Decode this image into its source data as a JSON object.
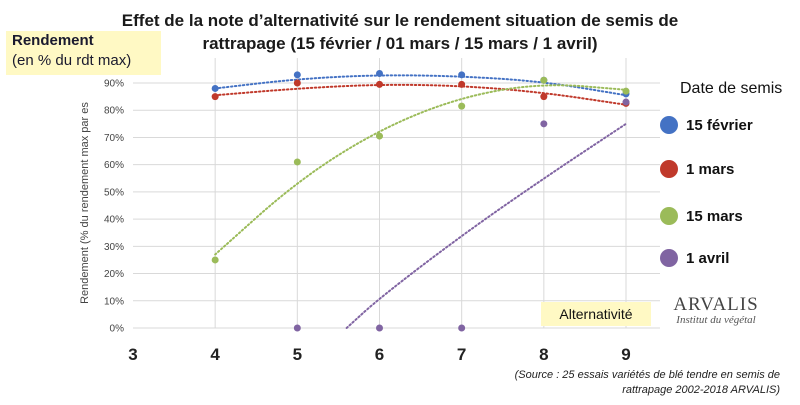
{
  "title_line1": "Effet de la note d’alternativité sur le rendement situation de semis de",
  "title_line2": "rattrapage (15 février / 01 mars / 15 mars / 1 avril)",
  "y_box": {
    "line1": "Rendement",
    "line2": "(en % du rdt max)"
  },
  "x_box_label": "Alternativité",
  "legend_title": "Date de semis",
  "logo": {
    "name": "ARVALIS",
    "subtitle": "Institut du végétal"
  },
  "source_line1": "(Source : 25 essais variétés de blé tendre en semis de",
  "source_line2": "rattrapage  2002-2018 ARVALIS)",
  "chart_data": {
    "type": "scatter",
    "title": "Effet de la note d’alternativité sur le rendement situation de semis de rattrapage (15 février / 01 mars / 15 mars / 1 avril)",
    "xlabel": "Alternativité",
    "ylabel": "Rendement (% du rendement max par es",
    "x_ticks": [
      3,
      4,
      5,
      6,
      7,
      8,
      9
    ],
    "y_ticks": [
      "0%",
      "10%",
      "20%",
      "30%",
      "40%",
      "50%",
      "60%",
      "70%",
      "80%",
      "90%"
    ],
    "xlim": [
      3,
      9.3
    ],
    "ylim": [
      0,
      0.95
    ],
    "grid": "horizontal",
    "legend": "right",
    "series": [
      {
        "name": "15 février",
        "color": "#4472c4",
        "points": [
          [
            4,
            0.88
          ],
          [
            5,
            0.93
          ],
          [
            6,
            0.935
          ],
          [
            7,
            0.93
          ],
          [
            8,
            0.91
          ],
          [
            9,
            0.86
          ]
        ],
        "trend": [
          [
            4,
            0.88
          ],
          [
            5,
            0.915
          ],
          [
            6,
            0.93
          ],
          [
            7,
            0.925
          ],
          [
            8,
            0.905
          ],
          [
            9,
            0.855
          ]
        ]
      },
      {
        "name": "1 mars",
        "color": "#c0392b",
        "points": [
          [
            4,
            0.85
          ],
          [
            5,
            0.9
          ],
          [
            6,
            0.895
          ],
          [
            7,
            0.895
          ],
          [
            8,
            0.85
          ],
          [
            9,
            0.825
          ]
        ],
        "trend": [
          [
            4,
            0.855
          ],
          [
            5,
            0.88
          ],
          [
            6,
            0.895
          ],
          [
            7,
            0.89
          ],
          [
            8,
            0.865
          ],
          [
            9,
            0.82
          ]
        ]
      },
      {
        "name": "15 mars",
        "color": "#9bbb59",
        "points": [
          [
            4,
            0.25
          ],
          [
            5,
            0.61
          ],
          [
            6,
            0.705
          ],
          [
            7,
            0.815
          ],
          [
            8,
            0.91
          ],
          [
            9,
            0.87
          ]
        ],
        "trend": [
          [
            4,
            0.27
          ],
          [
            5,
            0.54
          ],
          [
            6,
            0.73
          ],
          [
            7,
            0.85
          ],
          [
            8,
            0.9
          ],
          [
            9,
            0.875
          ]
        ]
      },
      {
        "name": "1 avril",
        "color": "#8064a2",
        "points": [
          [
            5,
            0
          ],
          [
            6,
            0
          ],
          [
            7,
            0
          ],
          [
            8,
            0.75
          ],
          [
            9,
            0.83
          ]
        ],
        "trend": [
          [
            5.6,
            0
          ],
          [
            6,
            0.11
          ],
          [
            7,
            0.34
          ],
          [
            8,
            0.55
          ],
          [
            9,
            0.75
          ]
        ]
      }
    ]
  }
}
